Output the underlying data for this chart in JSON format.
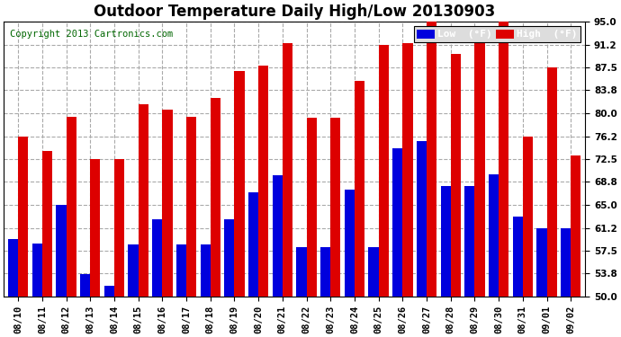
{
  "title": "Outdoor Temperature Daily High/Low 20130903",
  "copyright": "Copyright 2013 Cartronics.com",
  "legend_low": "Low  (°F)",
  "legend_high": "High  (°F)",
  "dates": [
    "08/10",
    "08/11",
    "08/12",
    "08/13",
    "08/14",
    "08/15",
    "08/16",
    "08/17",
    "08/18",
    "08/19",
    "08/20",
    "08/21",
    "08/22",
    "08/23",
    "08/24",
    "08/25",
    "08/26",
    "08/27",
    "08/28",
    "08/29",
    "08/30",
    "08/31",
    "09/01",
    "09/02"
  ],
  "high": [
    76.2,
    73.8,
    79.4,
    72.5,
    72.5,
    81.5,
    80.6,
    79.4,
    82.4,
    86.9,
    87.8,
    91.4,
    79.2,
    79.2,
    85.2,
    91.2,
    91.4,
    95.0,
    89.6,
    91.4,
    95.0,
    76.2,
    87.5,
    73.0
  ],
  "low": [
    59.4,
    58.6,
    64.9,
    53.6,
    51.8,
    58.5,
    62.6,
    58.5,
    58.5,
    62.6,
    67.1,
    69.8,
    58.1,
    58.1,
    67.5,
    58.1,
    74.3,
    75.4,
    68.0,
    68.0,
    70.0,
    63.0,
    61.2,
    61.2
  ],
  "ylim_min": 50.0,
  "ylim_max": 95.0,
  "yticks": [
    50.0,
    53.8,
    57.5,
    61.2,
    65.0,
    68.8,
    72.5,
    76.2,
    80.0,
    83.8,
    87.5,
    91.2,
    95.0
  ],
  "low_color": "#0000dd",
  "high_color": "#dd0000",
  "bg_color": "#ffffff",
  "grid_color": "#aaaaaa",
  "bar_width": 0.42,
  "title_fontsize": 12,
  "tick_fontsize": 7.5,
  "copyright_fontsize": 7.5
}
